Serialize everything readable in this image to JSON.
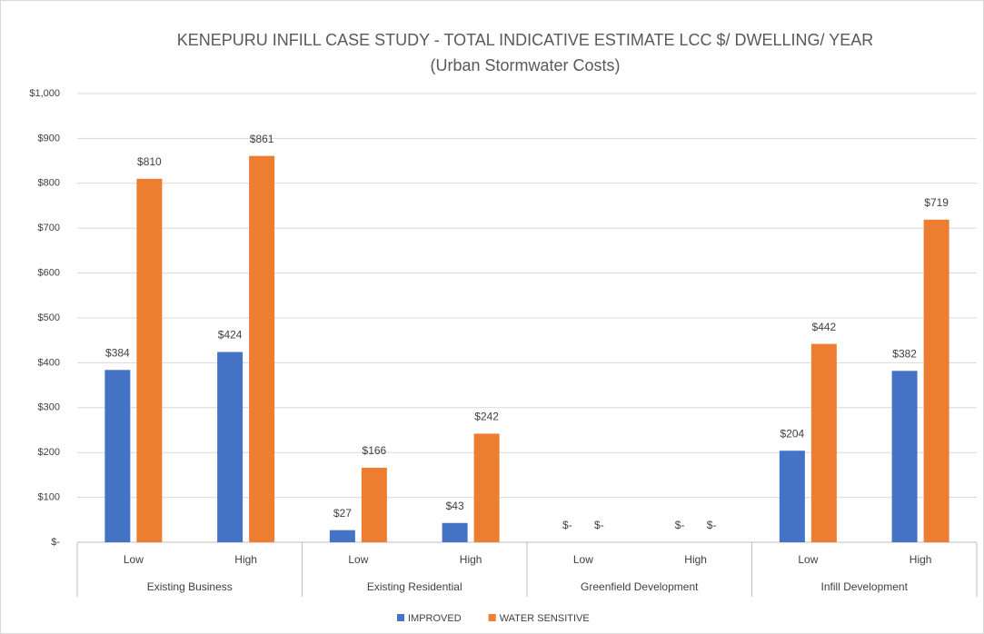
{
  "chart_data": {
    "type": "bar",
    "title": "KENEPURU INFILL CASE STUDY - TOTAL INDICATIVE ESTIMATE LCC $/ DWELLING/ YEAR",
    "subtitle": "(Urban Stormwater Costs)",
    "categories": [
      "Low",
      "High",
      "Low",
      "High",
      "Low",
      "High",
      "Low",
      "High"
    ],
    "category_groups": [
      "Existing Business",
      "Existing Residential",
      "Greenfield Development",
      "Infill Development"
    ],
    "series": [
      {
        "name": "IMPROVED",
        "color": "#4472c4",
        "values": [
          384,
          424,
          27,
          43,
          0,
          0,
          204,
          382
        ],
        "value_labels": [
          "$384",
          "$424",
          "$27",
          "$43",
          "$-",
          "$-",
          "$204",
          "$382"
        ]
      },
      {
        "name": "WATER SENSITIVE",
        "color": "#ed7d31",
        "values": [
          810,
          861,
          166,
          242,
          0,
          0,
          442,
          719
        ],
        "value_labels": [
          "$810",
          "$861",
          "$166",
          "$242",
          "$-",
          "$-",
          "$442",
          "$719"
        ]
      }
    ],
    "ylim": [
      0,
      1000
    ],
    "yticks": [
      {
        "value": 0,
        "label": "$-"
      },
      {
        "value": 100,
        "label": "$100"
      },
      {
        "value": 200,
        "label": "$200"
      },
      {
        "value": 300,
        "label": "$300"
      },
      {
        "value": 400,
        "label": "$400"
      },
      {
        "value": 500,
        "label": "$500"
      },
      {
        "value": 600,
        "label": "$600"
      },
      {
        "value": 700,
        "label": "$700"
      },
      {
        "value": 800,
        "label": "$800"
      },
      {
        "value": 900,
        "label": "$900"
      },
      {
        "value": 1000,
        "label": "$1,000"
      }
    ],
    "grid": true,
    "legend": "bottom"
  }
}
